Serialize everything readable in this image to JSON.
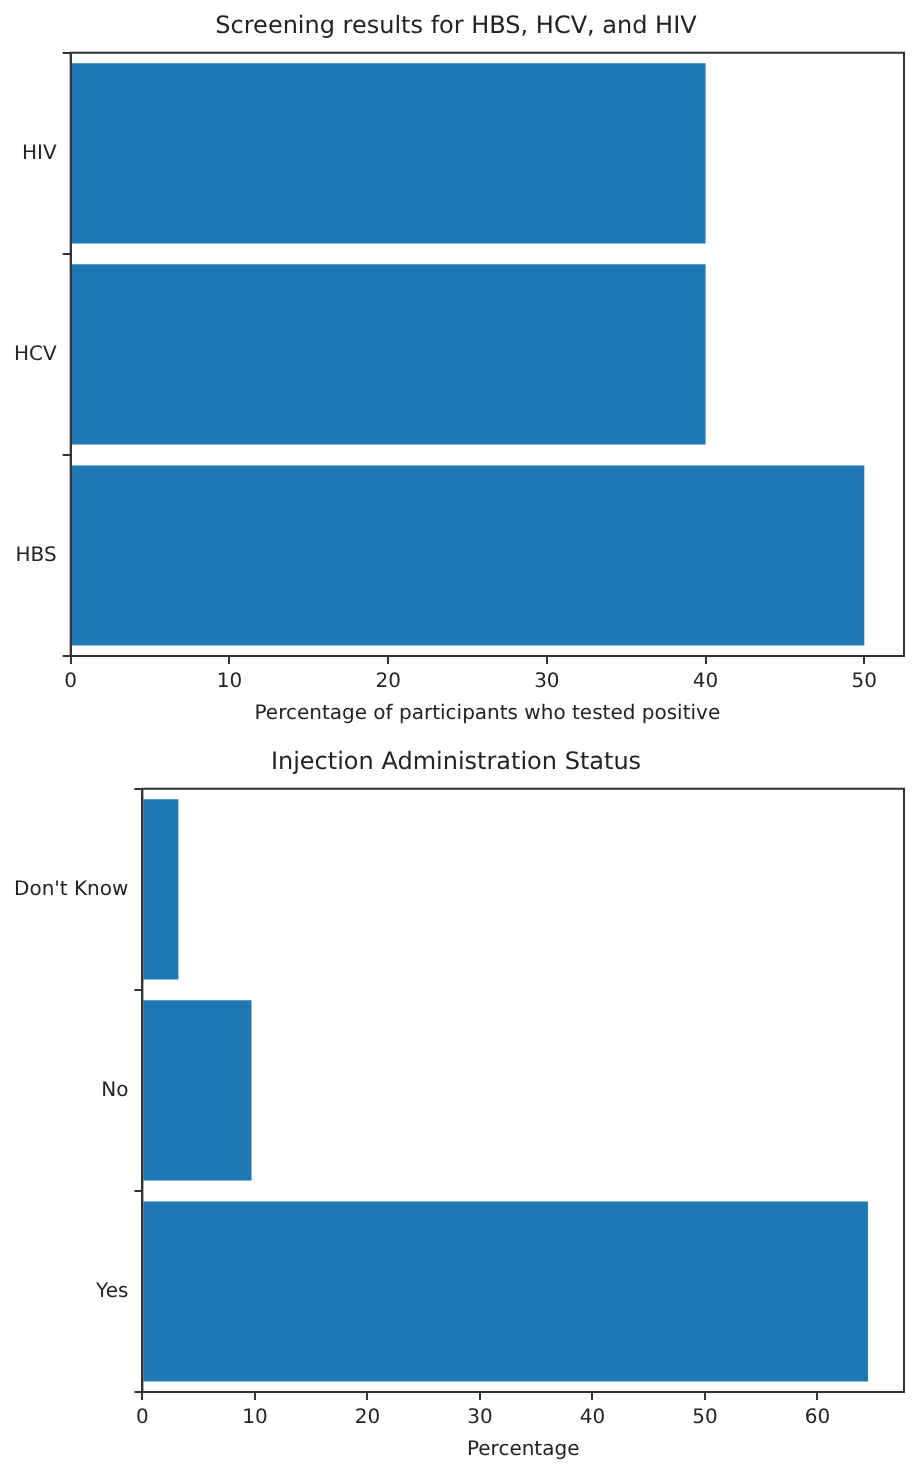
{
  "chart_data": [
    {
      "type": "bar",
      "orientation": "horizontal",
      "title": "Screening results for HBS, HCV, and HIV",
      "xlabel": "Percentage of participants who tested positive",
      "categories": [
        "HIV",
        "HCV",
        "HBS"
      ],
      "values": [
        40,
        40,
        50
      ],
      "color": "#1f77b4",
      "xlim": [
        0,
        52.5
      ],
      "xticks": [
        0,
        10,
        20,
        30,
        40,
        50
      ],
      "grid": false,
      "legend": false
    },
    {
      "type": "bar",
      "orientation": "horizontal",
      "title": "Injection Administration Status",
      "xlabel": "Percentage",
      "categories": [
        "Don't Know",
        "No",
        "Yes"
      ],
      "values": [
        3.2,
        9.7,
        64.5
      ],
      "color": "#1f77b4",
      "xlim": [
        0,
        67.7
      ],
      "xticks": [
        0,
        10,
        20,
        30,
        40,
        50,
        60
      ],
      "grid": false,
      "legend": false
    }
  ]
}
